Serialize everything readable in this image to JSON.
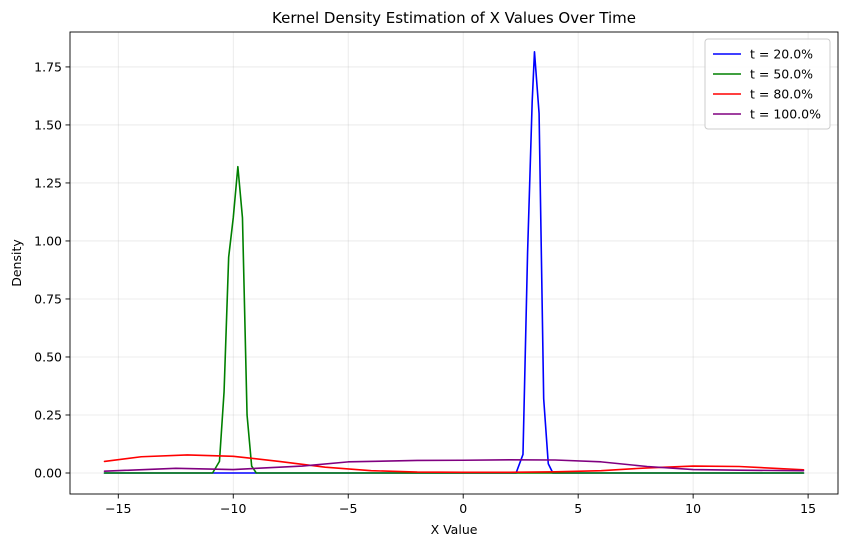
{
  "chart_data": {
    "type": "line",
    "title": "Kernel Density Estimation of X Values Over Time",
    "xlabel": "X Value",
    "ylabel": "Density",
    "xlim": [
      -17.1,
      16.3
    ],
    "ylim": [
      -0.0905,
      1.9005
    ],
    "xticks": [
      -15,
      -10,
      -5,
      0,
      5,
      10,
      15
    ],
    "xtick_labels": [
      "−15",
      "−10",
      "−5",
      "0",
      "5",
      "10",
      "15"
    ],
    "yticks": [
      0.0,
      0.25,
      0.5,
      0.75,
      1.0,
      1.25,
      1.5,
      1.75
    ],
    "ytick_labels": [
      "0.00",
      "0.25",
      "0.50",
      "0.75",
      "1.00",
      "1.25",
      "1.50",
      "1.75"
    ],
    "grid": true,
    "legend_position": "top-right",
    "series": [
      {
        "name": "t = 20.0%",
        "color": "#0000ff",
        "x": [
          -15.6,
          2.3,
          2.6,
          2.8,
          3.0,
          3.1,
          3.3,
          3.5,
          3.7,
          3.9,
          14.8
        ],
        "y": [
          0.0,
          0.0,
          0.08,
          0.95,
          1.6,
          1.815,
          1.55,
          0.32,
          0.04,
          0.0,
          0.0
        ]
      },
      {
        "name": "t = 50.0%",
        "color": "#008000",
        "x": [
          -15.6,
          -10.9,
          -10.6,
          -10.4,
          -10.2,
          -10.0,
          -9.8,
          -9.6,
          -9.4,
          -9.2,
          -9.0,
          14.8
        ],
        "y": [
          0.0,
          0.0,
          0.05,
          0.35,
          0.93,
          1.1,
          1.32,
          1.1,
          0.25,
          0.03,
          0.0,
          0.0
        ]
      },
      {
        "name": "t = 80.0%",
        "color": "#ff0000",
        "x": [
          -15.6,
          -14.0,
          -12.0,
          -10.0,
          -8.0,
          -6.0,
          -4.0,
          -2.0,
          0.0,
          2.0,
          4.0,
          6.0,
          8.0,
          10.0,
          12.0,
          14.8
        ],
        "y": [
          0.05,
          0.07,
          0.078,
          0.072,
          0.05,
          0.025,
          0.01,
          0.004,
          0.003,
          0.003,
          0.005,
          0.01,
          0.022,
          0.03,
          0.028,
          0.014
        ]
      },
      {
        "name": "t = 100.0%",
        "color": "#800080",
        "x": [
          -15.6,
          -12.5,
          -10.0,
          -7.0,
          -5.0,
          -2.0,
          0.0,
          2.0,
          4.0,
          6.0,
          8.0,
          10.0,
          12.0,
          14.8
        ],
        "y": [
          0.008,
          0.02,
          0.015,
          0.03,
          0.048,
          0.054,
          0.055,
          0.057,
          0.056,
          0.048,
          0.028,
          0.015,
          0.012,
          0.01
        ]
      }
    ]
  }
}
